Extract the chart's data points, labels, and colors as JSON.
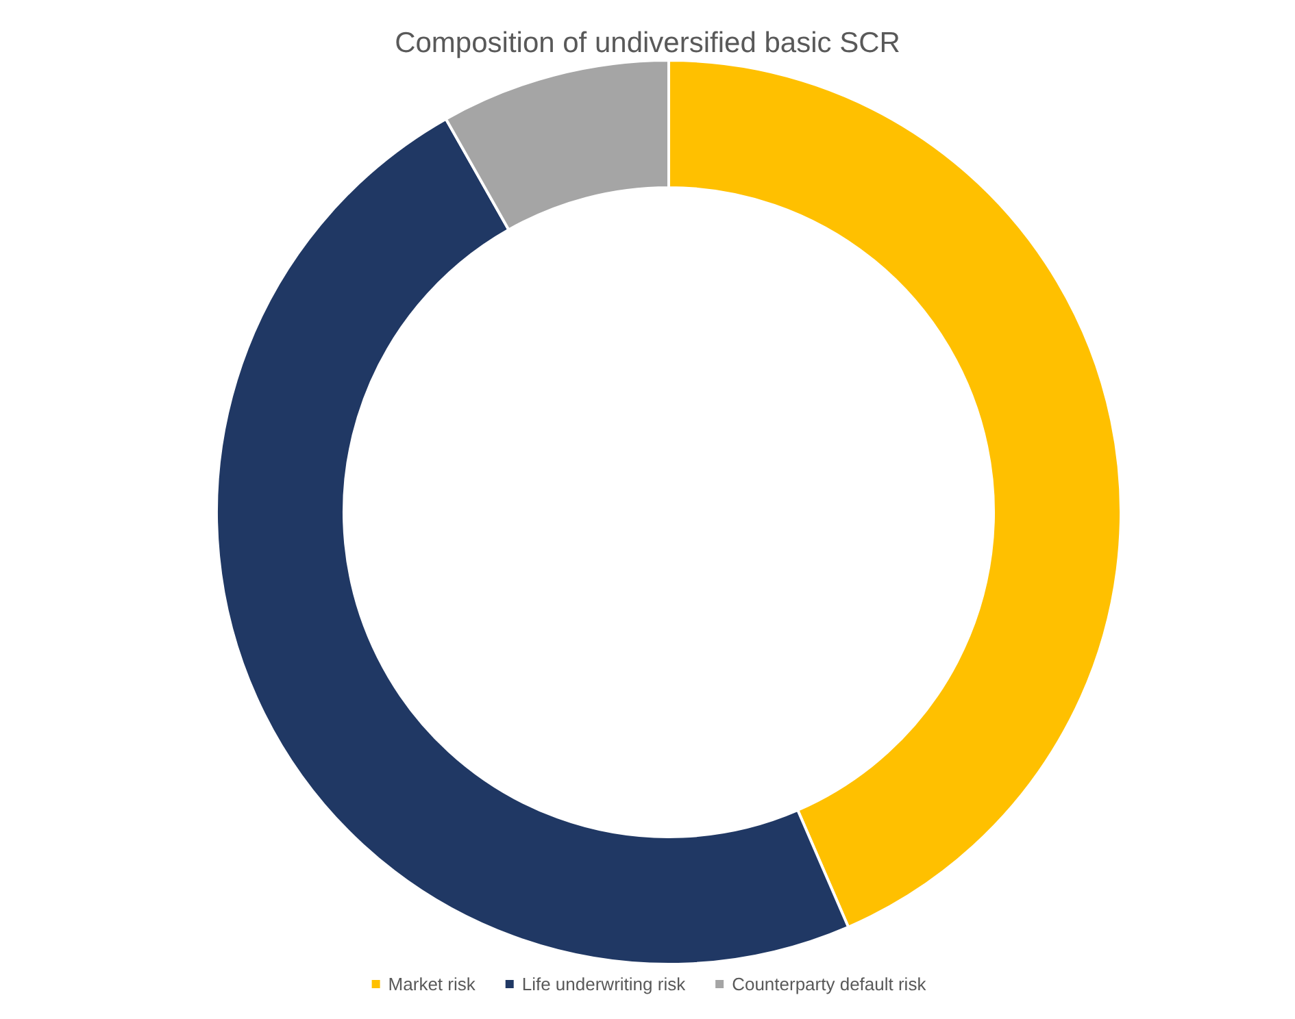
{
  "chart_data": {
    "type": "donut",
    "title": "Composition of undiversified basic SCR",
    "categories": [
      "Market risk",
      "Life underwriting risk",
      "Counterparty default risk"
    ],
    "values": [
      43.5,
      48.3,
      8.2
    ],
    "colors": [
      "#ffc000",
      "#203864",
      "#a5a5a5"
    ],
    "legend": "bottom"
  }
}
